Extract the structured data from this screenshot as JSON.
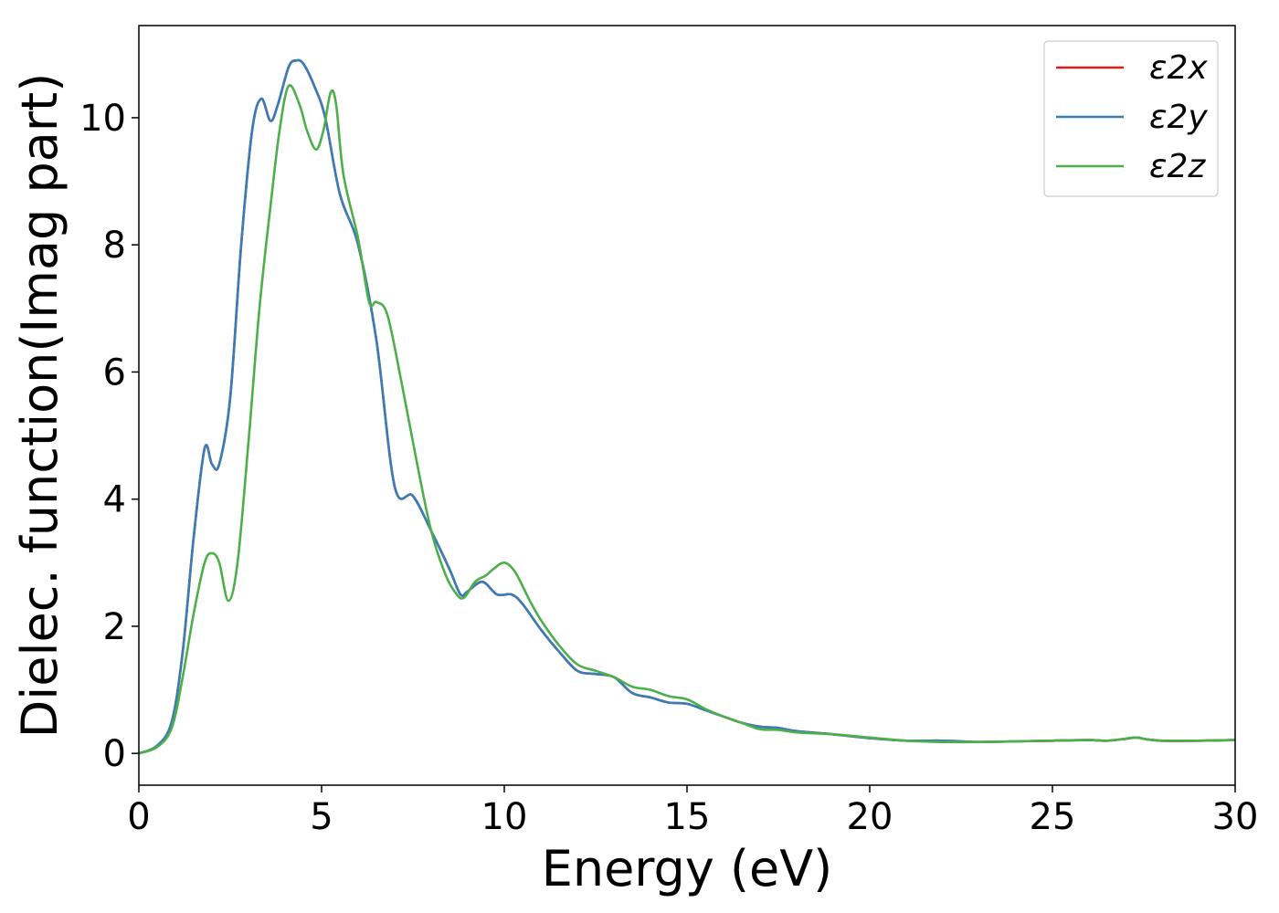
{
  "chart_data": {
    "type": "line",
    "title": "",
    "xlabel": "Energy (eV)",
    "ylabel": "Dielec. function(Imag part)",
    "xlim": [
      0,
      30
    ],
    "ylim": [
      -0.5,
      11.45
    ],
    "xticks": [
      0,
      5,
      10,
      15,
      20,
      25,
      30
    ],
    "xtick_labels": [
      "0",
      "5",
      "10",
      "15",
      "20",
      "25",
      "30"
    ],
    "yticks": [
      0,
      2,
      4,
      6,
      8,
      10
    ],
    "ytick_labels": [
      "0",
      "2",
      "4",
      "6",
      "8",
      "10"
    ],
    "grid": false,
    "legend_position": "top-right",
    "series": [
      {
        "name": "ε2x",
        "color": "#e41a1c",
        "x": [
          0,
          0.5,
          0.9,
          1.2,
          1.5,
          1.8,
          2.0,
          2.2,
          2.5,
          2.8,
          3.1,
          3.35,
          3.6,
          3.8,
          4.1,
          4.3,
          4.5,
          4.8,
          5.1,
          5.5,
          6.0,
          6.5,
          7.0,
          7.5,
          8.0,
          8.5,
          8.8,
          9.0,
          9.4,
          9.8,
          10.2,
          10.5,
          11.0,
          11.5,
          12.0,
          12.5,
          13.0,
          13.5,
          14.0,
          14.5,
          15.0,
          15.5,
          16.0,
          16.5,
          17.0,
          17.5,
          18.0,
          19.0,
          20.0,
          21.0,
          22.0,
          23.0,
          24.0,
          25.0,
          26.0,
          26.5,
          27.0,
          27.3,
          27.6,
          28.0,
          29.0,
          30.0
        ],
        "values": [
          0,
          0.12,
          0.5,
          1.6,
          3.4,
          4.8,
          4.55,
          4.55,
          5.6,
          8.0,
          9.8,
          10.3,
          9.95,
          10.2,
          10.8,
          10.9,
          10.85,
          10.5,
          10.0,
          8.8,
          8.0,
          6.5,
          4.2,
          4.05,
          3.5,
          2.9,
          2.5,
          2.55,
          2.7,
          2.5,
          2.5,
          2.35,
          1.95,
          1.6,
          1.3,
          1.25,
          1.2,
          0.95,
          0.88,
          0.8,
          0.78,
          0.68,
          0.58,
          0.48,
          0.42,
          0.4,
          0.35,
          0.3,
          0.24,
          0.2,
          0.2,
          0.18,
          0.19,
          0.2,
          0.21,
          0.2,
          0.23,
          0.25,
          0.22,
          0.2,
          0.2,
          0.21
        ]
      },
      {
        "name": "ε2y",
        "color": "#377eb8",
        "x": [
          0,
          0.5,
          0.9,
          1.2,
          1.5,
          1.8,
          2.0,
          2.2,
          2.5,
          2.8,
          3.1,
          3.35,
          3.6,
          3.8,
          4.1,
          4.3,
          4.5,
          4.8,
          5.1,
          5.5,
          6.0,
          6.5,
          7.0,
          7.5,
          8.0,
          8.5,
          8.8,
          9.0,
          9.4,
          9.8,
          10.2,
          10.5,
          11.0,
          11.5,
          12.0,
          12.5,
          13.0,
          13.5,
          14.0,
          14.5,
          15.0,
          15.5,
          16.0,
          16.5,
          17.0,
          17.5,
          18.0,
          19.0,
          20.0,
          21.0,
          22.0,
          23.0,
          24.0,
          25.0,
          26.0,
          26.5,
          27.0,
          27.3,
          27.6,
          28.0,
          29.0,
          30.0
        ],
        "values": [
          0,
          0.12,
          0.5,
          1.6,
          3.4,
          4.8,
          4.55,
          4.55,
          5.6,
          8.0,
          9.8,
          10.3,
          9.95,
          10.2,
          10.8,
          10.9,
          10.85,
          10.5,
          10.0,
          8.8,
          8.0,
          6.5,
          4.2,
          4.05,
          3.5,
          2.9,
          2.5,
          2.55,
          2.7,
          2.5,
          2.5,
          2.35,
          1.95,
          1.6,
          1.3,
          1.25,
          1.2,
          0.95,
          0.88,
          0.8,
          0.78,
          0.68,
          0.58,
          0.48,
          0.42,
          0.4,
          0.35,
          0.3,
          0.24,
          0.2,
          0.2,
          0.18,
          0.19,
          0.2,
          0.21,
          0.2,
          0.23,
          0.25,
          0.22,
          0.2,
          0.2,
          0.21
        ]
      },
      {
        "name": "ε2z",
        "color": "#4daf4a",
        "x": [
          0,
          0.5,
          0.9,
          1.2,
          1.5,
          1.8,
          2.0,
          2.2,
          2.45,
          2.7,
          3.0,
          3.3,
          3.6,
          3.85,
          4.1,
          4.4,
          4.6,
          4.85,
          5.05,
          5.25,
          5.4,
          5.6,
          6.0,
          6.3,
          6.5,
          6.8,
          7.2,
          7.6,
          8.0,
          8.4,
          8.7,
          8.9,
          9.2,
          9.5,
          9.7,
          10.0,
          10.3,
          10.7,
          11.0,
          11.5,
          12.0,
          12.5,
          13.0,
          13.5,
          14.0,
          14.5,
          15.0,
          15.5,
          16.0,
          16.5,
          17.0,
          17.5,
          18.0,
          19.0,
          20.0,
          21.0,
          22.0,
          23.0,
          24.0,
          25.0,
          26.0,
          26.5,
          27.0,
          27.3,
          27.6,
          28.0,
          29.0,
          30.0
        ],
        "values": [
          0,
          0.1,
          0.4,
          1.2,
          2.2,
          3.0,
          3.15,
          3.0,
          2.4,
          3.0,
          4.9,
          7.0,
          8.6,
          9.8,
          10.5,
          10.2,
          9.8,
          9.5,
          9.8,
          10.4,
          10.2,
          9.1,
          8.1,
          7.1,
          7.1,
          6.9,
          5.8,
          4.6,
          3.5,
          2.8,
          2.5,
          2.45,
          2.7,
          2.8,
          2.9,
          3.0,
          2.85,
          2.4,
          2.1,
          1.7,
          1.4,
          1.3,
          1.2,
          1.05,
          1.0,
          0.9,
          0.85,
          0.7,
          0.58,
          0.48,
          0.38,
          0.37,
          0.33,
          0.3,
          0.25,
          0.2,
          0.18,
          0.18,
          0.19,
          0.2,
          0.21,
          0.2,
          0.23,
          0.25,
          0.22,
          0.2,
          0.2,
          0.21
        ]
      }
    ]
  }
}
